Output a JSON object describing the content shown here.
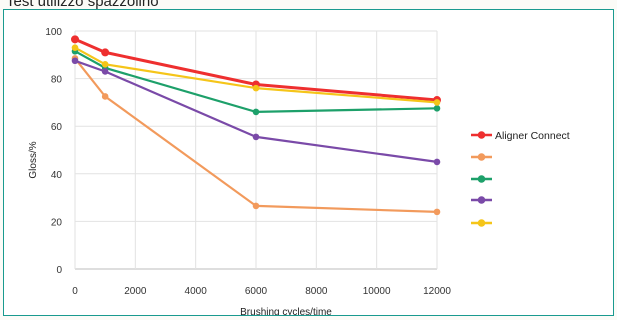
{
  "page_title": "Test utilizzo spazzolino",
  "chart_data": {
    "type": "line",
    "xlabel": "Brushing cycles/time",
    "ylabel": "Gloss/%",
    "x": [
      0,
      1000,
      6000,
      12000
    ],
    "xlim": [
      0,
      12000
    ],
    "ylim": [
      0,
      100
    ],
    "xticks": [
      0,
      2000,
      4000,
      6000,
      8000,
      10000,
      12000
    ],
    "yticks": [
      0,
      20,
      40,
      60,
      80,
      100
    ],
    "grid": true,
    "legend_position": "right",
    "series": [
      {
        "name": "Aligner Connect",
        "color": "#ee2f2f",
        "values": [
          96.5,
          91,
          77.5,
          71
        ]
      },
      {
        "name": "",
        "color": "#f29a5c",
        "values": [
          88.5,
          72.5,
          26.5,
          24
        ]
      },
      {
        "name": "",
        "color": "#1da06a",
        "values": [
          91.5,
          84.5,
          66,
          67.5
        ]
      },
      {
        "name": "",
        "color": "#7a4aa8",
        "values": [
          87.5,
          83,
          55.5,
          45
        ]
      },
      {
        "name": "",
        "color": "#f5c519",
        "values": [
          93,
          86,
          76,
          70
        ]
      }
    ]
  }
}
